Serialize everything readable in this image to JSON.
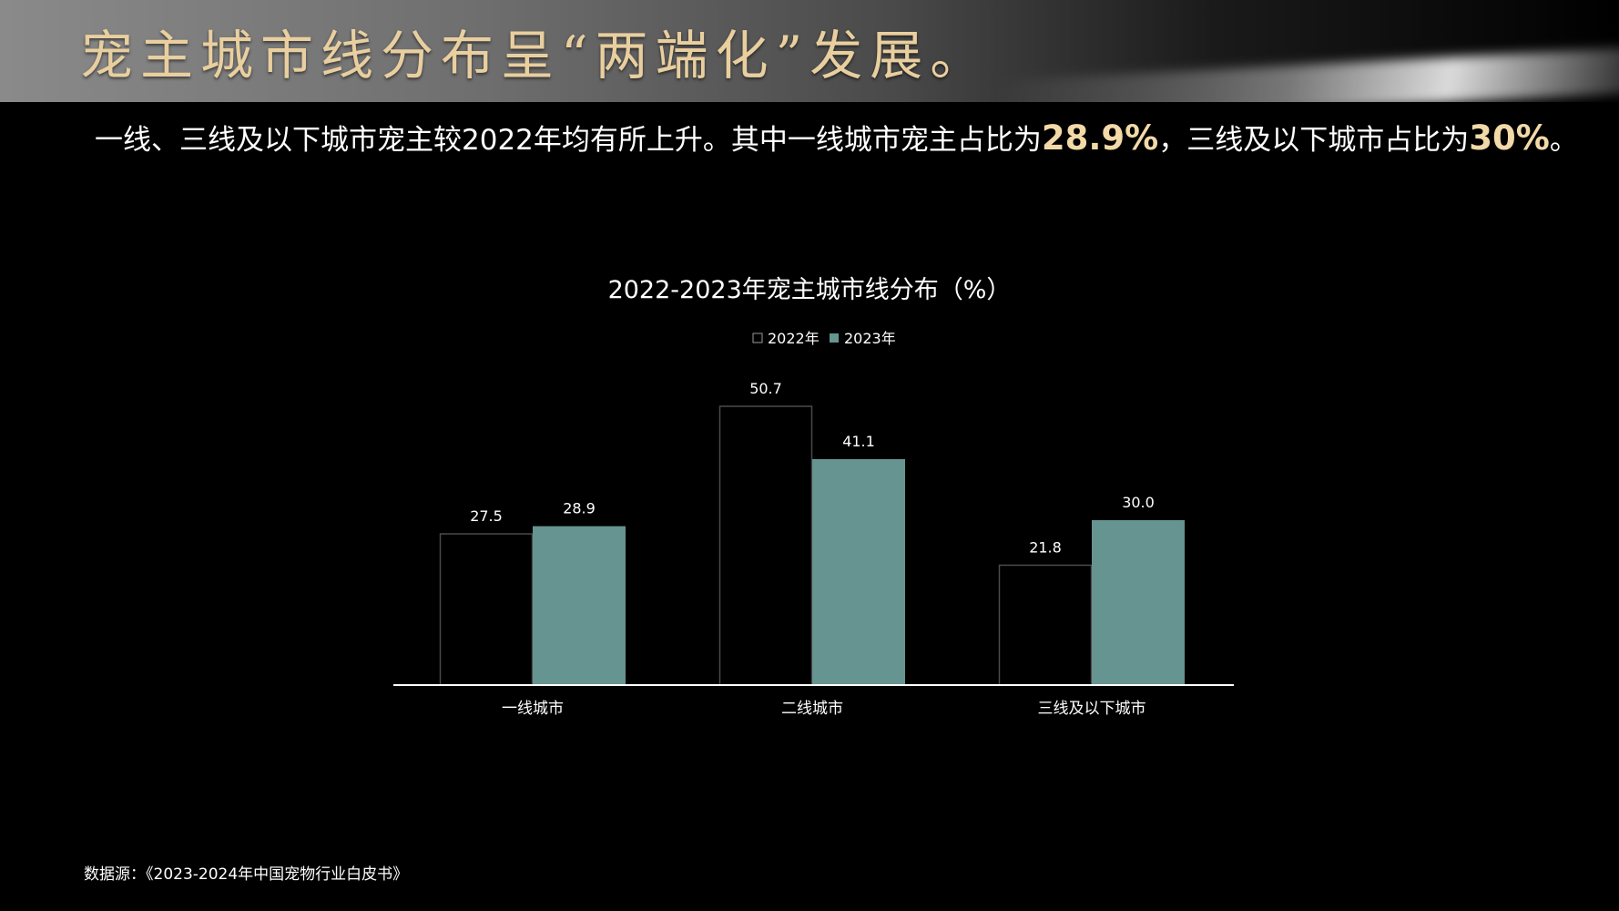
{
  "page": {
    "title": "宠主城市线分布呈“两端化”发展。",
    "subtitle": {
      "part1": "一线、三线及以下城市宠主较2022年均有所上升。其中一线城市宠主占比为",
      "highlight1": "28.9%",
      "part2": "，三线及以下城市占比为",
      "highlight2": "30%",
      "part3": "。"
    },
    "source": "数据源：《2023-2024年中国宠物行业白皮书》"
  },
  "colors": {
    "title_gold": "#e9cf9f",
    "highlight": "#f2d9a8",
    "series_2023": "#669490",
    "series_2022_outline": "#4a4a4a",
    "axis": "#ffffff"
  },
  "chart_data": {
    "type": "bar",
    "title": "2022-2023年宠主城市线分布（%）",
    "categories": [
      "一线城市",
      "二线城市",
      "三线及以下城市"
    ],
    "series": [
      {
        "name": "2022年",
        "values": [
          27.5,
          50.7,
          21.8
        ],
        "labels": [
          "27.5",
          "50.7",
          "21.8"
        ]
      },
      {
        "name": "2023年",
        "values": [
          28.9,
          41.1,
          30.0
        ],
        "labels": [
          "28.9",
          "41.1",
          "30.0"
        ]
      }
    ],
    "ylim": [
      0,
      50.7
    ],
    "grid": false,
    "legend": "top-center"
  }
}
